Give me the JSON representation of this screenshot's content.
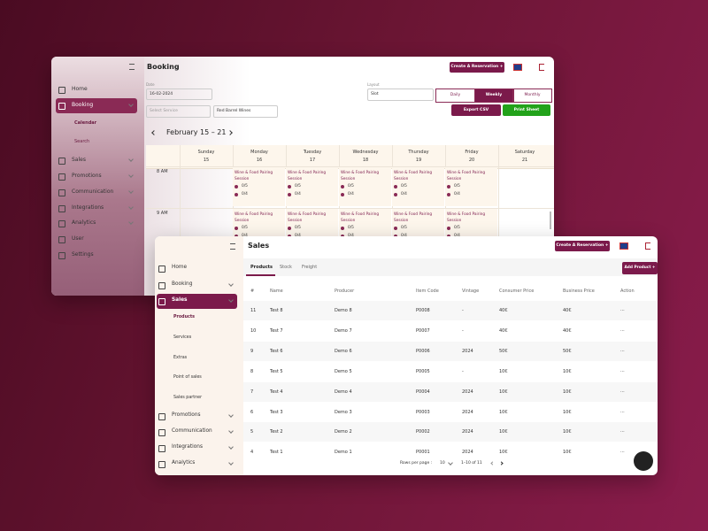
{
  "booking_window": {
    "title": "Booking",
    "create_button": "Create A Reservation +",
    "sidebar": [
      "Home",
      "Booking",
      "Calendar",
      "Search",
      "Sales",
      "Promotions",
      "Communication",
      "Integrations",
      "Analytics",
      "User",
      "Settings"
    ],
    "date_label": "Date",
    "date_value": "16-02-2024",
    "layout_label": "Layout",
    "layout_value": "Slot",
    "view_tabs": [
      "Daily",
      "Weekly",
      "Monthly"
    ],
    "service_select": "Select Service",
    "wine_select": "Red Barrel Wines",
    "export_button": "Export CSV",
    "print_button": "Print Sheet",
    "date_range": "February 15 – 21",
    "days": [
      {
        "name": "Sunday",
        "date": "15"
      },
      {
        "name": "Monday",
        "date": "16"
      },
      {
        "name": "Tuesday",
        "date": "17"
      },
      {
        "name": "Wednesday",
        "date": "18"
      },
      {
        "name": "Thursday",
        "date": "19"
      },
      {
        "name": "Friday",
        "date": "20"
      },
      {
        "name": "Saturday",
        "date": "21"
      }
    ],
    "times": [
      "8 AM",
      "9 AM"
    ],
    "session": {
      "title": "Wine & Food Pairing Session",
      "capacity_a": "0/5",
      "capacity_b": "0/4"
    }
  },
  "sales_window": {
    "title": "Sales",
    "create_button": "Create A Reservation +",
    "sidebar": [
      "Home",
      "Booking",
      "Sales",
      "Products",
      "Services",
      "Extras",
      "Point of sales",
      "Sales partner",
      "Promotions",
      "Communication",
      "Integrations",
      "Analytics"
    ],
    "tabs": [
      "Products",
      "Stock",
      "Freight"
    ],
    "add_button": "Add Product +",
    "table": {
      "columns": [
        "#",
        "Name",
        "Producer",
        "Item Code",
        "Vintage",
        "Consumer Price",
        "Business Price",
        "Action"
      ],
      "rows": [
        [
          "11",
          "Test 8",
          "Demo 8",
          "P0008",
          "-",
          "40€",
          "40€",
          "···"
        ],
        [
          "10",
          "Test 7",
          "Demo 7",
          "P0007",
          "-",
          "40€",
          "40€",
          "···"
        ],
        [
          "9",
          "Test 6",
          "Demo 6",
          "P0006",
          "2024",
          "50€",
          "50€",
          "···"
        ],
        [
          "8",
          "Test 5",
          "Demo 5",
          "P0005",
          "-",
          "10€",
          "10€",
          "···"
        ],
        [
          "7",
          "Test 4",
          "Demo 4",
          "P0004",
          "2024",
          "10€",
          "10€",
          "···"
        ],
        [
          "6",
          "Test 3",
          "Demo 3",
          "P0003",
          "2024",
          "10€",
          "10€",
          "···"
        ],
        [
          "5",
          "Test 2",
          "Demo 2",
          "P0002",
          "2024",
          "10€",
          "10€",
          "···"
        ],
        [
          "4",
          "Test 1",
          "Demo 1",
          "P0001",
          "2024",
          "10€",
          "10€",
          "···"
        ]
      ]
    },
    "rows_per_page_label": "Rows per page :",
    "rows_per_page": "10",
    "pagination": "1–10 of 11"
  }
}
